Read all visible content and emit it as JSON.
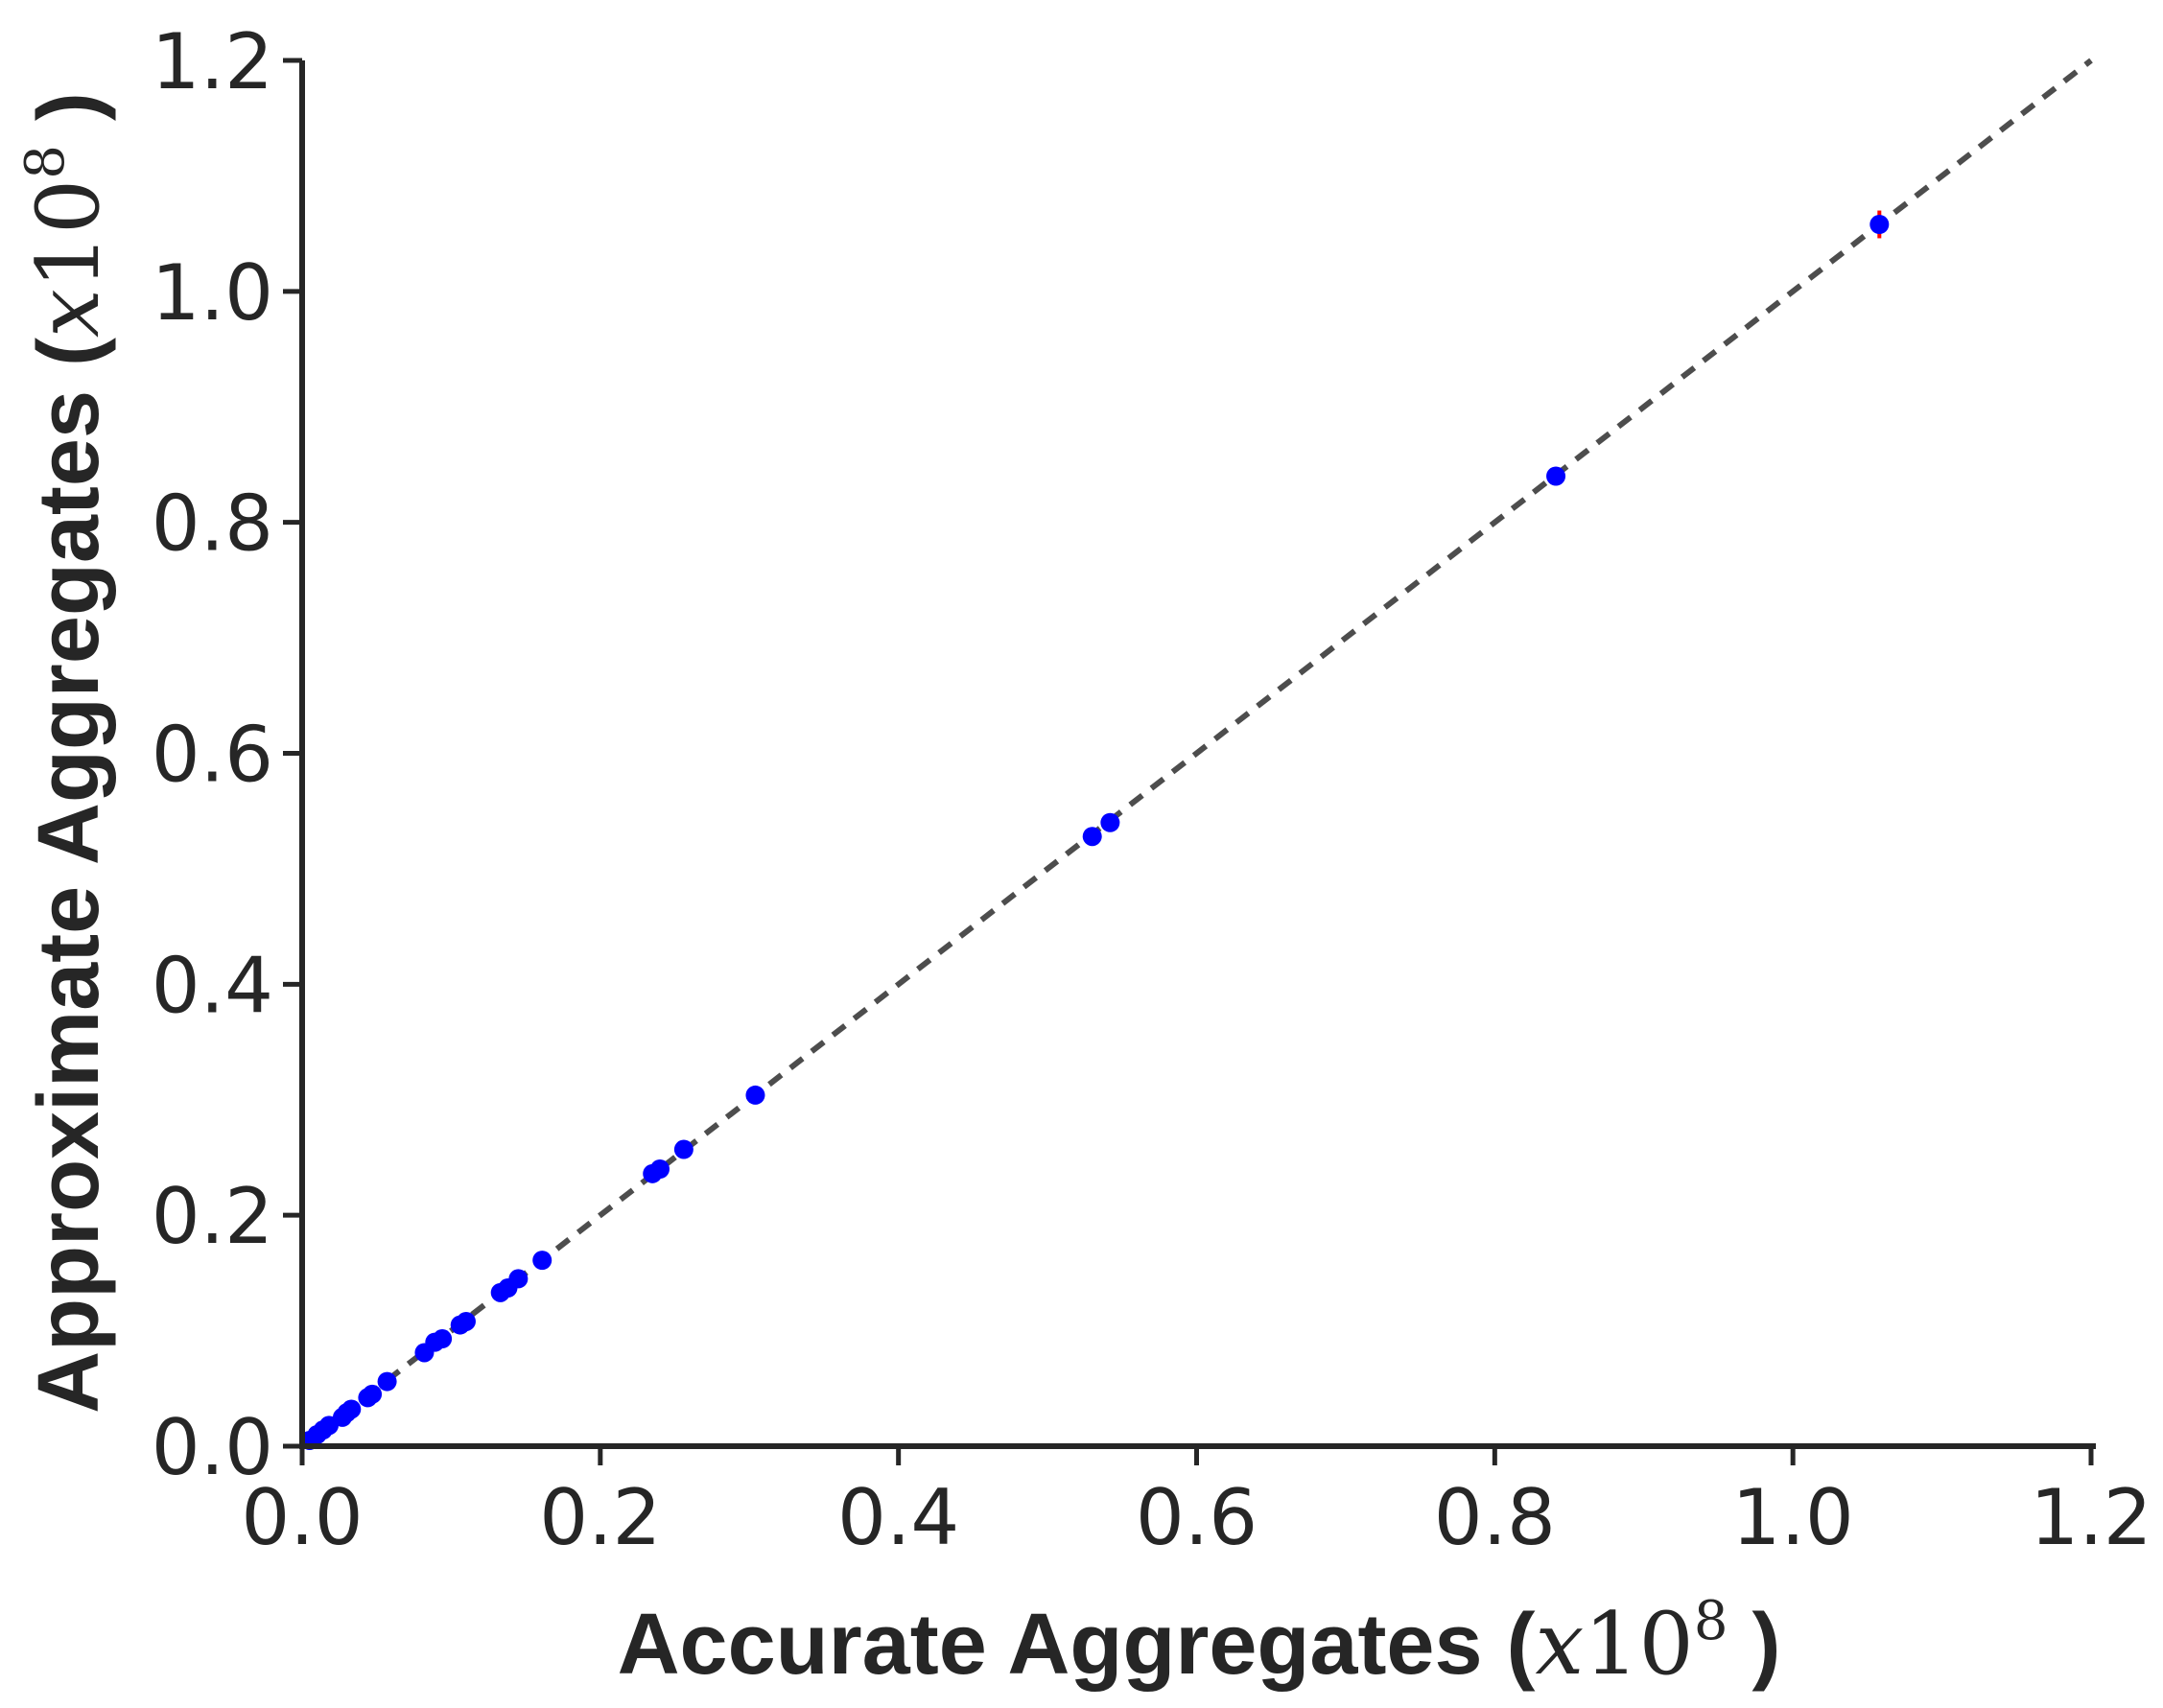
{
  "chart_data": {
    "type": "scatter",
    "xlabel": {
      "text": "Accurate Aggregates (",
      "math_var": "x",
      "math_base": "10",
      "math_exp": "8",
      "close": " )"
    },
    "ylabel": {
      "text": "Approximate Aggregates (",
      "math_var": "x",
      "math_base": "10",
      "math_exp": "8",
      "close": " )"
    },
    "xlim": [
      0,
      1.2
    ],
    "ylim": [
      0,
      1.2
    ],
    "xticks": [
      "0.0",
      "0.2",
      "0.4",
      "0.6",
      "0.8",
      "1.0",
      "1.2"
    ],
    "yticks": [
      "0.0",
      "0.2",
      "0.4",
      "0.6",
      "0.8",
      "1.0",
      "1.2"
    ],
    "grid": false,
    "reference_line": {
      "from": [
        0,
        0
      ],
      "to": [
        1.2,
        1.2
      ],
      "style": "dashed",
      "color": "#4d4d4d"
    },
    "point_color": "#0000ff",
    "errorbar_color": "#ff0000",
    "points": [
      {
        "x": 0.005,
        "y": 0.005
      },
      {
        "x": 0.01,
        "y": 0.01
      },
      {
        "x": 0.014,
        "y": 0.014
      },
      {
        "x": 0.018,
        "y": 0.018
      },
      {
        "x": 0.027,
        "y": 0.025
      },
      {
        "x": 0.03,
        "y": 0.029
      },
      {
        "x": 0.033,
        "y": 0.032
      },
      {
        "x": 0.044,
        "y": 0.042
      },
      {
        "x": 0.047,
        "y": 0.045
      },
      {
        "x": 0.057,
        "y": 0.056
      },
      {
        "x": 0.082,
        "y": 0.081
      },
      {
        "x": 0.089,
        "y": 0.09
      },
      {
        "x": 0.094,
        "y": 0.093
      },
      {
        "x": 0.106,
        "y": 0.105
      },
      {
        "x": 0.11,
        "y": 0.108
      },
      {
        "x": 0.133,
        "y": 0.133
      },
      {
        "x": 0.138,
        "y": 0.137
      },
      {
        "x": 0.145,
        "y": 0.145
      },
      {
        "x": 0.161,
        "y": 0.161
      },
      {
        "x": 0.235,
        "y": 0.236
      },
      {
        "x": 0.24,
        "y": 0.24
      },
      {
        "x": 0.256,
        "y": 0.257
      },
      {
        "x": 0.304,
        "y": 0.304
      },
      {
        "x": 0.53,
        "y": 0.528
      },
      {
        "x": 0.542,
        "y": 0.54
      },
      {
        "x": 0.841,
        "y": 0.84
      },
      {
        "x": 1.058,
        "y": 1.058,
        "yerr": 0.012
      }
    ]
  }
}
